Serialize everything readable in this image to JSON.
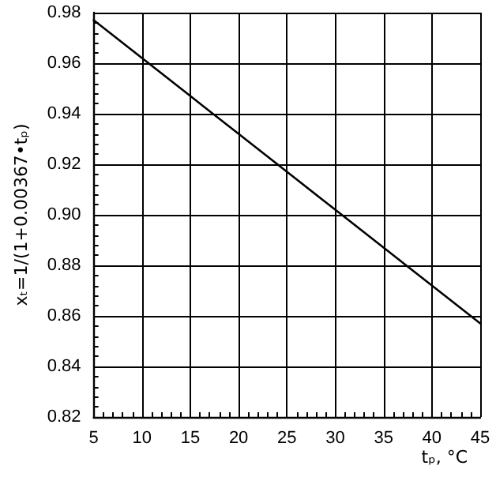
{
  "chart_data": {
    "type": "line",
    "xlabel": "tₚ, °C",
    "ylabel": "xₜ=1/(1+0.00367•tₚ)",
    "x": [
      5,
      10,
      15,
      20,
      25,
      30,
      35,
      40,
      45
    ],
    "series": [
      {
        "color": "#000000",
        "values": [
          0.977,
          0.962,
          0.947,
          0.932,
          0.917,
          0.902,
          0.887,
          0.872,
          0.857
        ]
      }
    ],
    "xlim": [
      5,
      45
    ],
    "xticks": [
      5,
      10,
      15,
      20,
      25,
      30,
      35,
      40,
      45
    ],
    "ylim": [
      0.82,
      0.98
    ],
    "yticks": [
      {
        "value": 0.82,
        "label": "0.82"
      },
      {
        "value": 0.84,
        "label": "0.84"
      },
      {
        "value": 0.86,
        "label": "0.86"
      },
      {
        "value": 0.88,
        "label": "0.88"
      },
      {
        "value": 0.9,
        "label": "0.90"
      },
      {
        "value": 0.92,
        "label": "0.92"
      },
      {
        "value": 0.94,
        "label": "0.94"
      },
      {
        "value": 0.96,
        "label": "0.96"
      },
      {
        "value": 0.98,
        "label": "0.98"
      }
    ],
    "grid": true,
    "marker": "none",
    "line_style": "solid"
  }
}
